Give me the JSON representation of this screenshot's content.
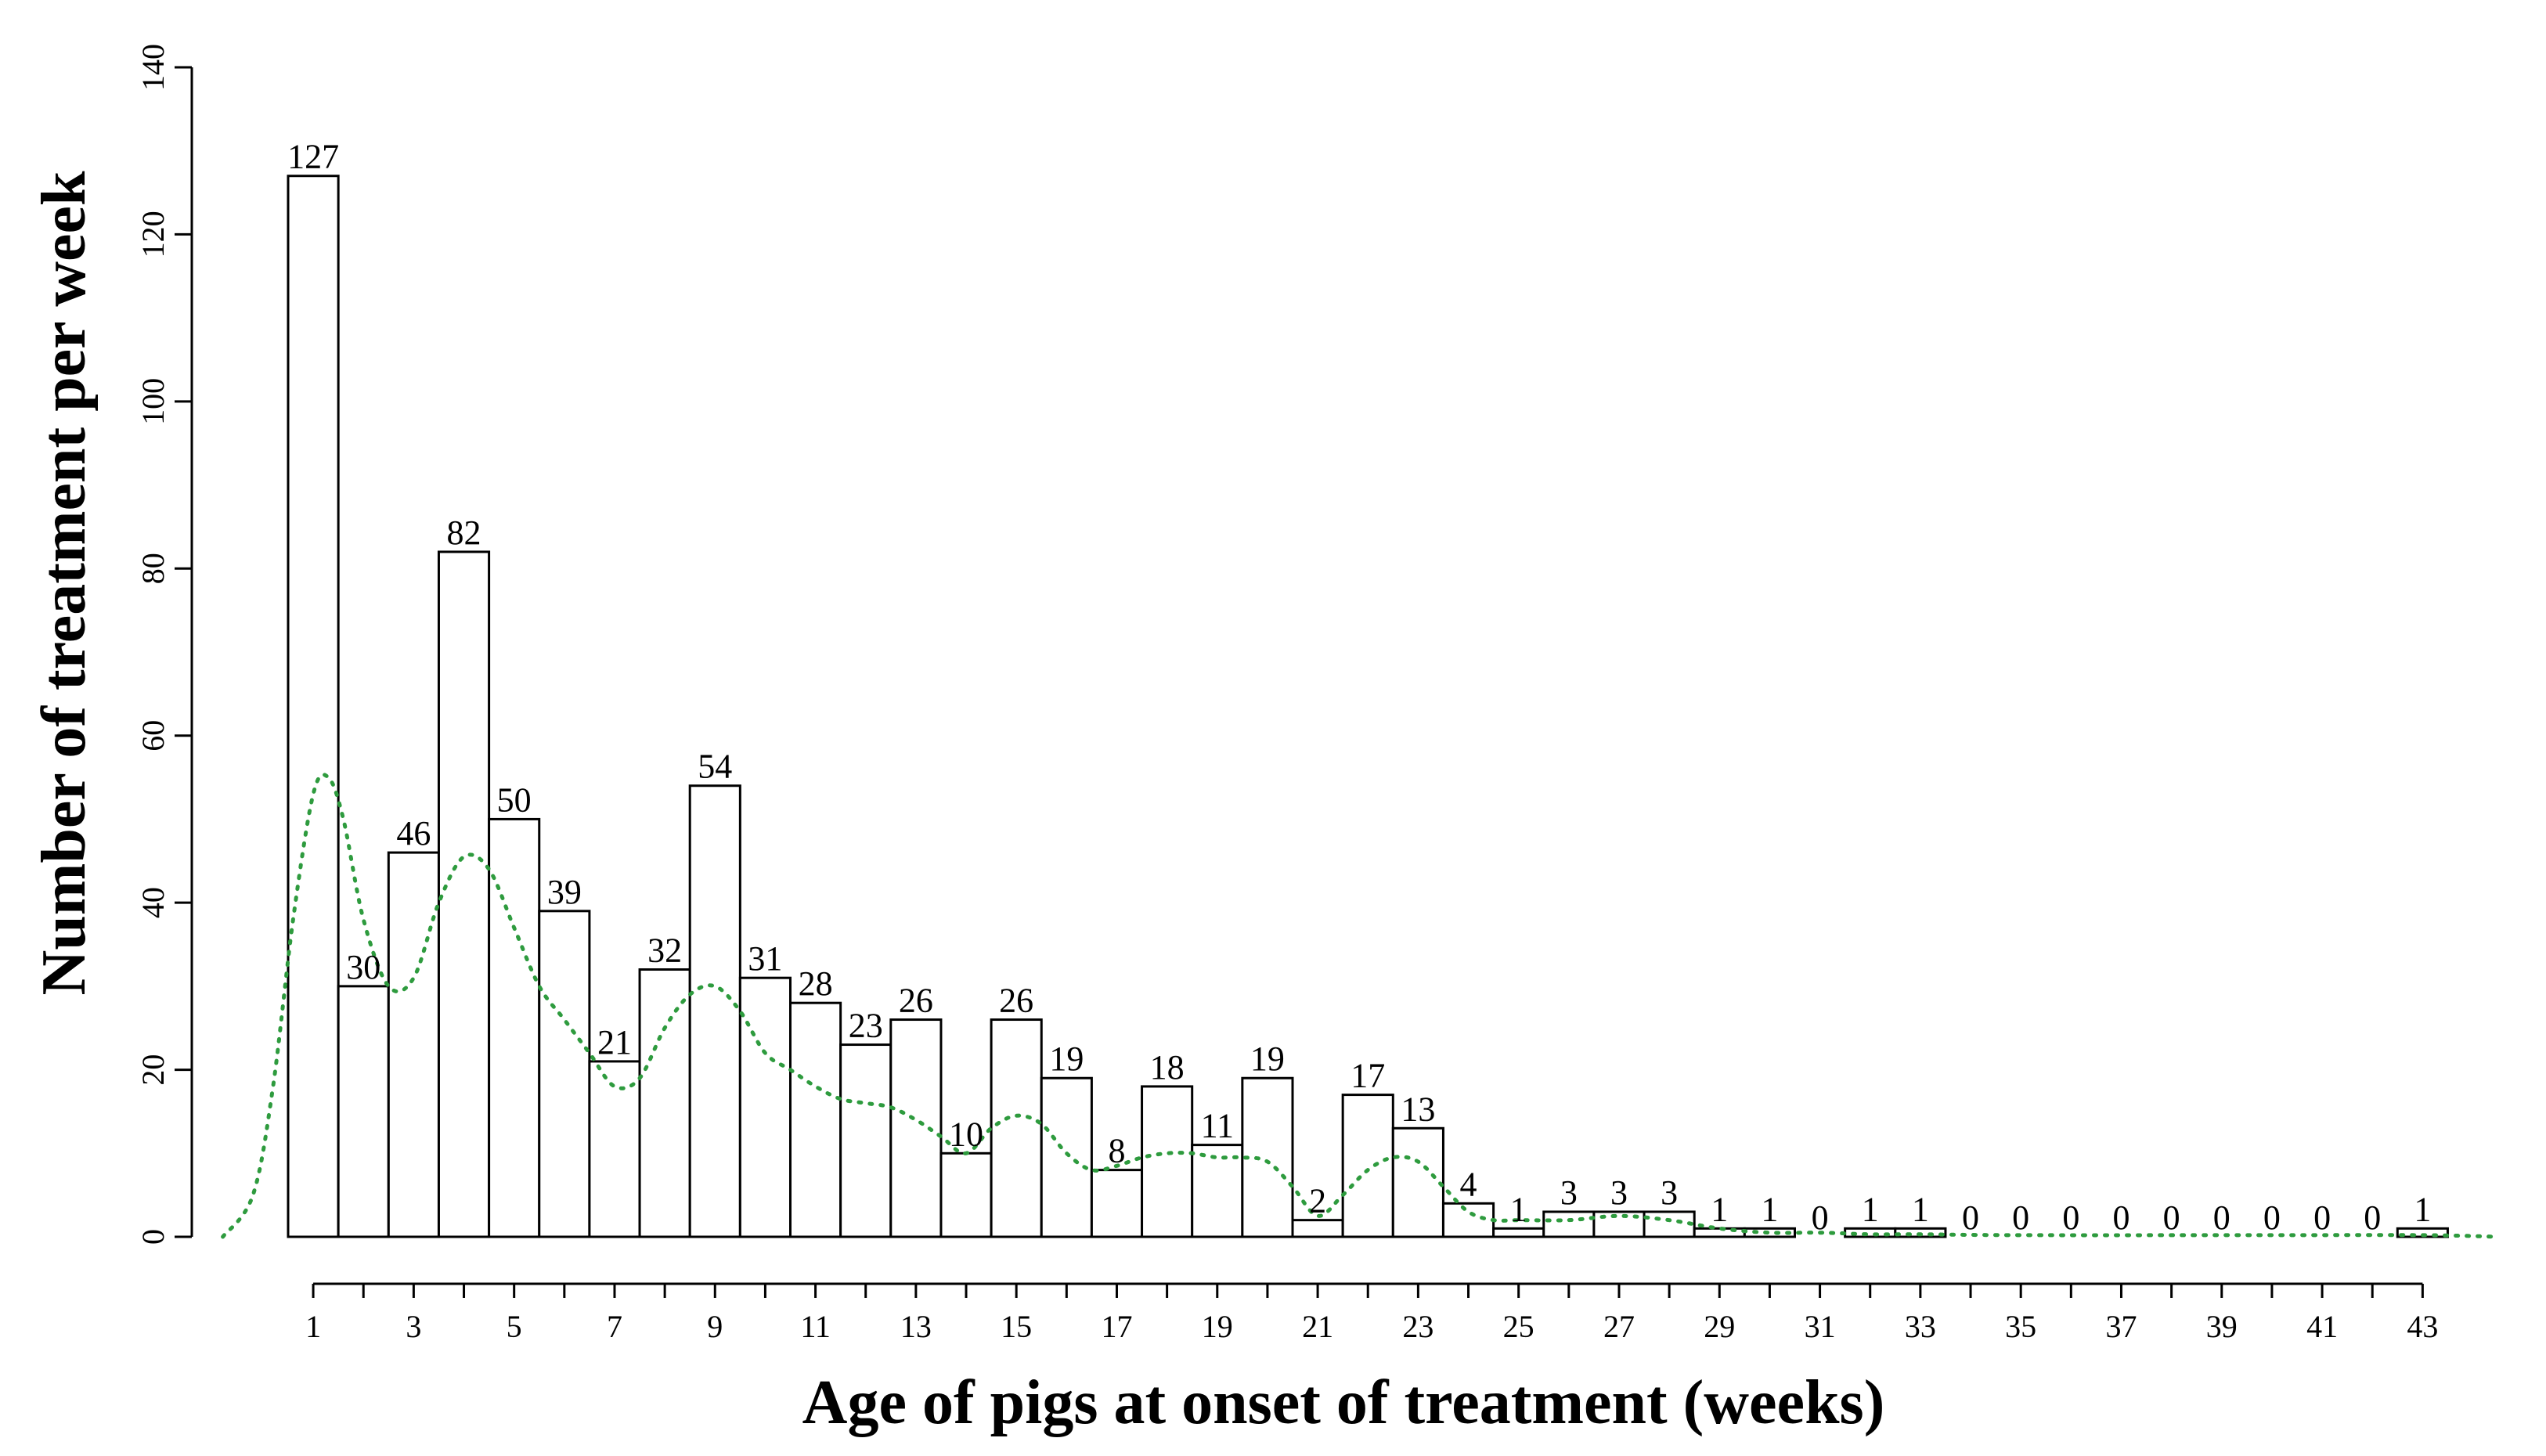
{
  "chart_data": {
    "type": "bar",
    "title": "",
    "xlabel": "Age of pigs at onset of treatment (weeks)",
    "ylabel": "Number of treatment per week",
    "ylim": [
      0,
      140
    ],
    "yticks": [
      0,
      20,
      40,
      60,
      80,
      100,
      120,
      140
    ],
    "categories": [
      "1",
      "2",
      "3",
      "4",
      "5",
      "6",
      "7",
      "8",
      "9",
      "10",
      "11",
      "12",
      "13",
      "14",
      "15",
      "16",
      "17",
      "18",
      "19",
      "20",
      "21",
      "22",
      "23",
      "24",
      "25",
      "26",
      "27",
      "28",
      "29",
      "30",
      "31",
      "32",
      "33",
      "34",
      "35",
      "36",
      "37",
      "38",
      "39",
      "40",
      "41",
      "42",
      "43"
    ],
    "xtick_labels": [
      "1",
      "3",
      "5",
      "7",
      "9",
      "11",
      "13",
      "15",
      "17",
      "19",
      "21",
      "23",
      "25",
      "27",
      "29",
      "31",
      "33",
      "35",
      "37",
      "39",
      "41",
      "43"
    ],
    "values": [
      127,
      30,
      46,
      82,
      50,
      39,
      21,
      32,
      54,
      31,
      28,
      23,
      26,
      10,
      26,
      19,
      8,
      18,
      11,
      19,
      2,
      17,
      13,
      4,
      1,
      3,
      3,
      3,
      1,
      1,
      0,
      1,
      1,
      0,
      0,
      0,
      0,
      0,
      0,
      0,
      0,
      0,
      1
    ],
    "trend": {
      "name": "density",
      "style": "dotted",
      "color": "#2e9b3e",
      "x": [
        -0.8,
        -0.2,
        0.2,
        0.6,
        1.0,
        1.3,
        1.6,
        2.0,
        2.5,
        3.0,
        3.5,
        4.0,
        4.5,
        5.0,
        5.5,
        6.0,
        6.5,
        7.0,
        7.5,
        8.0,
        8.5,
        9.0,
        9.5,
        10.0,
        10.5,
        11.0,
        11.5,
        12.0,
        12.5,
        13.0,
        13.5,
        14.0,
        14.5,
        15.0,
        15.5,
        16.0,
        16.5,
        17.0,
        17.5,
        18.0,
        18.5,
        19.0,
        19.5,
        20.0,
        20.5,
        21.0,
        21.5,
        22.0,
        22.5,
        23.0,
        23.5,
        24.0,
        24.5,
        25.0,
        26.0,
        27.0,
        28.0,
        29.0,
        30.0,
        31.0,
        32.0,
        33.0,
        35.0,
        40.0,
        43.0,
        44.5
      ],
      "y": [
        0,
        5,
        18,
        38,
        53,
        55,
        50,
        38,
        30,
        31,
        40,
        45.5,
        44,
        37,
        30,
        26,
        22,
        18,
        19,
        25,
        29,
        30,
        27,
        22,
        20,
        18,
        16.5,
        16,
        15.5,
        14,
        12,
        10,
        13,
        14.5,
        13.5,
        10,
        8,
        8.5,
        9.5,
        10,
        10,
        9.5,
        9.5,
        9,
        6,
        2.5,
        5,
        8,
        9.5,
        9,
        6,
        3,
        2,
        2,
        2,
        2.5,
        2,
        1,
        0.5,
        0.5,
        0.3,
        0.3,
        0.2,
        0.2,
        0.2,
        0
      ]
    }
  }
}
